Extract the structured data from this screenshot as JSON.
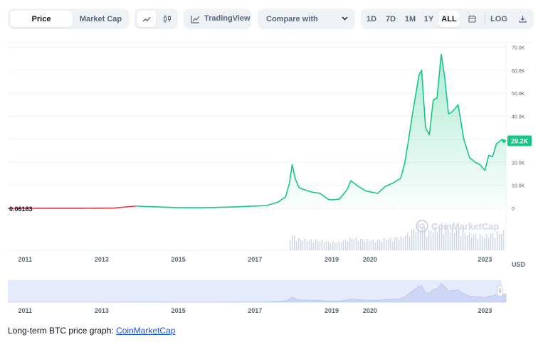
{
  "toolbar": {
    "price_tab": "Price",
    "market_cap_tab": "Market Cap",
    "tradingview_label": "TradingView",
    "compare_label": "Compare with",
    "ranges": [
      "1D",
      "7D",
      "1M",
      "1Y",
      "ALL"
    ],
    "active_range": "ALL",
    "log_label": "LOG"
  },
  "caption": {
    "text": "Long-term BTC price graph: ",
    "link_text": "CoinMarketCap"
  },
  "watermark": "CoinMarketCap",
  "colors": {
    "line_up": "#16c784",
    "line_down": "#ea3943",
    "grid": "#eff2f5",
    "axis_text": "#58667e",
    "volume": "#cfd6e4",
    "nav_fill": "#e6ebfb"
  },
  "chart_data": {
    "type": "area",
    "currency_label": "USD",
    "first_value_label": "0.06183",
    "current_value_label": "29.2K",
    "ylim": [
      0,
      72000
    ],
    "y_ticks": [
      0,
      10000,
      20000,
      30000,
      40000,
      50000,
      60000,
      70000
    ],
    "y_tick_labels": [
      "0",
      "10.0K",
      "20.0K",
      "30.0K",
      "40.0K",
      "50.0K",
      "60.0K",
      "70.0K"
    ],
    "xlim": [
      2010.55,
      2023.55
    ],
    "x_ticks": [
      2011,
      2013,
      2015,
      2017,
      2019,
      2020,
      2023
    ],
    "x_tick_labels": [
      "2011",
      "2013",
      "2015",
      "2017",
      "2019",
      "2020",
      "2023"
    ],
    "grid": true,
    "series": [
      {
        "x": [
          2010.55,
          2011.5,
          2012.5,
          2013.3,
          2013.9,
          2014.1,
          2014.5,
          2015.0,
          2015.5,
          2016.0,
          2016.5,
          2017.0,
          2017.3,
          2017.6,
          2017.8,
          2017.9,
          2017.97,
          2018.05,
          2018.15,
          2018.3,
          2018.5,
          2018.7,
          2018.9,
          2019.0,
          2019.2,
          2019.4,
          2019.5,
          2019.7,
          2019.9,
          2020.0,
          2020.2,
          2020.4,
          2020.6,
          2020.8,
          2020.9,
          2021.0,
          2021.1,
          2021.2,
          2021.28,
          2021.35,
          2021.45,
          2021.55,
          2021.65,
          2021.75,
          2021.86,
          2021.95,
          2022.05,
          2022.15,
          2022.3,
          2022.45,
          2022.6,
          2022.75,
          2022.87,
          2023.0,
          2023.1,
          2023.2,
          2023.3,
          2023.45,
          2023.55
        ],
        "values": [
          0.06,
          5,
          10,
          100,
          1000,
          800,
          600,
          300,
          250,
          400,
          650,
          1000,
          1200,
          2700,
          5000,
          11000,
          19000,
          13000,
          9000,
          8000,
          7000,
          6500,
          4000,
          3700,
          4000,
          8000,
          12000,
          9500,
          7500,
          7200,
          6500,
          9500,
          11000,
          13000,
          19000,
          29000,
          40000,
          50000,
          58000,
          60000,
          35000,
          32000,
          47000,
          48000,
          67000,
          57000,
          41000,
          42000,
          45000,
          30000,
          22000,
          20000,
          19000,
          16500,
          23000,
          22500,
          28000,
          30000,
          29200
        ]
      }
    ]
  }
}
